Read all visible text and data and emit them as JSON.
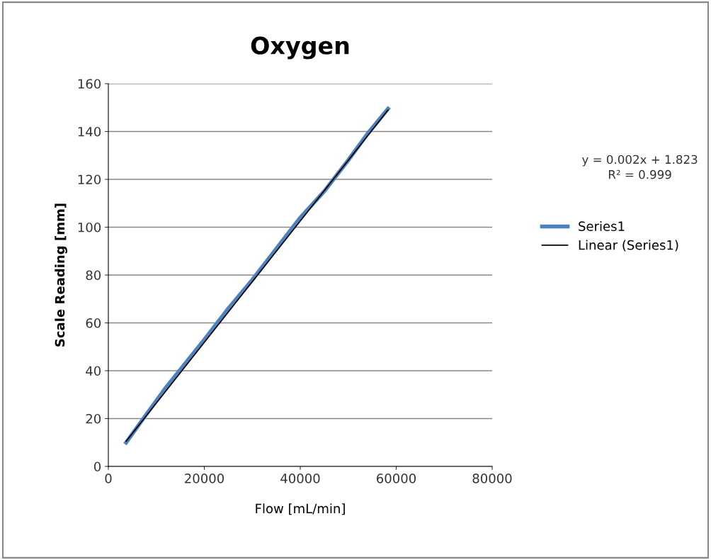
{
  "chart_data": {
    "type": "line",
    "title": "Oxygen",
    "xlabel": "Flow [mL/min]",
    "ylabel": "Scale Reading [mm]",
    "series": [
      {
        "name": "Series1",
        "color": "#4f81bd",
        "x": [
          3700,
          8000,
          12000,
          16000,
          20000,
          25000,
          30000,
          35000,
          40000,
          45000,
          50000,
          54000,
          58300
        ],
        "values": [
          10,
          22,
          33,
          43,
          53,
          66,
          78,
          91,
          104,
          115,
          128,
          139,
          149.5
        ]
      },
      {
        "name": "Linear (Series1)",
        "color": "#000000",
        "x": [
          3700,
          58300
        ],
        "values": [
          10.5,
          149
        ]
      }
    ],
    "xlim": [
      0,
      80000
    ],
    "xticks": [
      0,
      20000,
      40000,
      60000,
      80000
    ],
    "ylim": [
      0,
      160
    ],
    "yticks": [
      0,
      20,
      40,
      60,
      80,
      100,
      120,
      140,
      160
    ],
    "grid": "y",
    "legend": "right",
    "marker": "none",
    "line_style": "solid",
    "annotations": [
      "y = 0.002x + 1.823\nR² = 0.999"
    ]
  }
}
